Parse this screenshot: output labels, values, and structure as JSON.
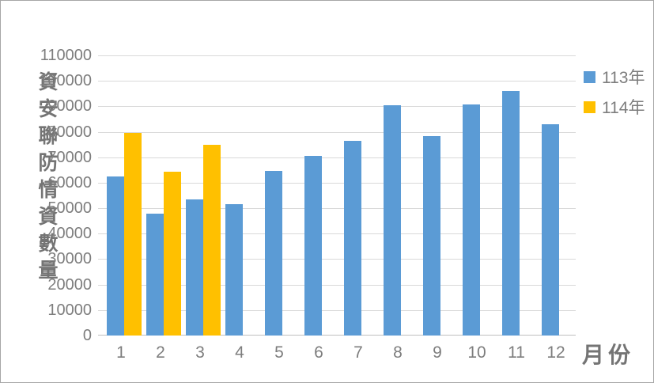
{
  "chart_data": {
    "type": "bar",
    "title": "",
    "y_axis_title": "資安聯防情資數量",
    "x_axis_title": "月份",
    "categories": [
      "1",
      "2",
      "3",
      "4",
      "5",
      "6",
      "7",
      "8",
      "9",
      "10",
      "11",
      "12"
    ],
    "series": [
      {
        "name": "113年",
        "color": "#5B9BD5",
        "values": [
          62500,
          47800,
          53400,
          51500,
          64700,
          70600,
          76400,
          90400,
          78300,
          90700,
          96100,
          83000
        ]
      },
      {
        "name": "114年",
        "color": "#FFC000",
        "values": [
          79400,
          64300,
          75000,
          null,
          null,
          null,
          null,
          null,
          null,
          null,
          null,
          null
        ]
      }
    ],
    "ylim": [
      0,
      110000
    ],
    "ytick_step": 10000,
    "grid": true,
    "legend_position": "right"
  },
  "colors": {
    "gridline": "#D9D9D9",
    "axis_line": "#BFBFBF",
    "text": "#7D7D7D",
    "frame_border": "#A6A6A6"
  }
}
